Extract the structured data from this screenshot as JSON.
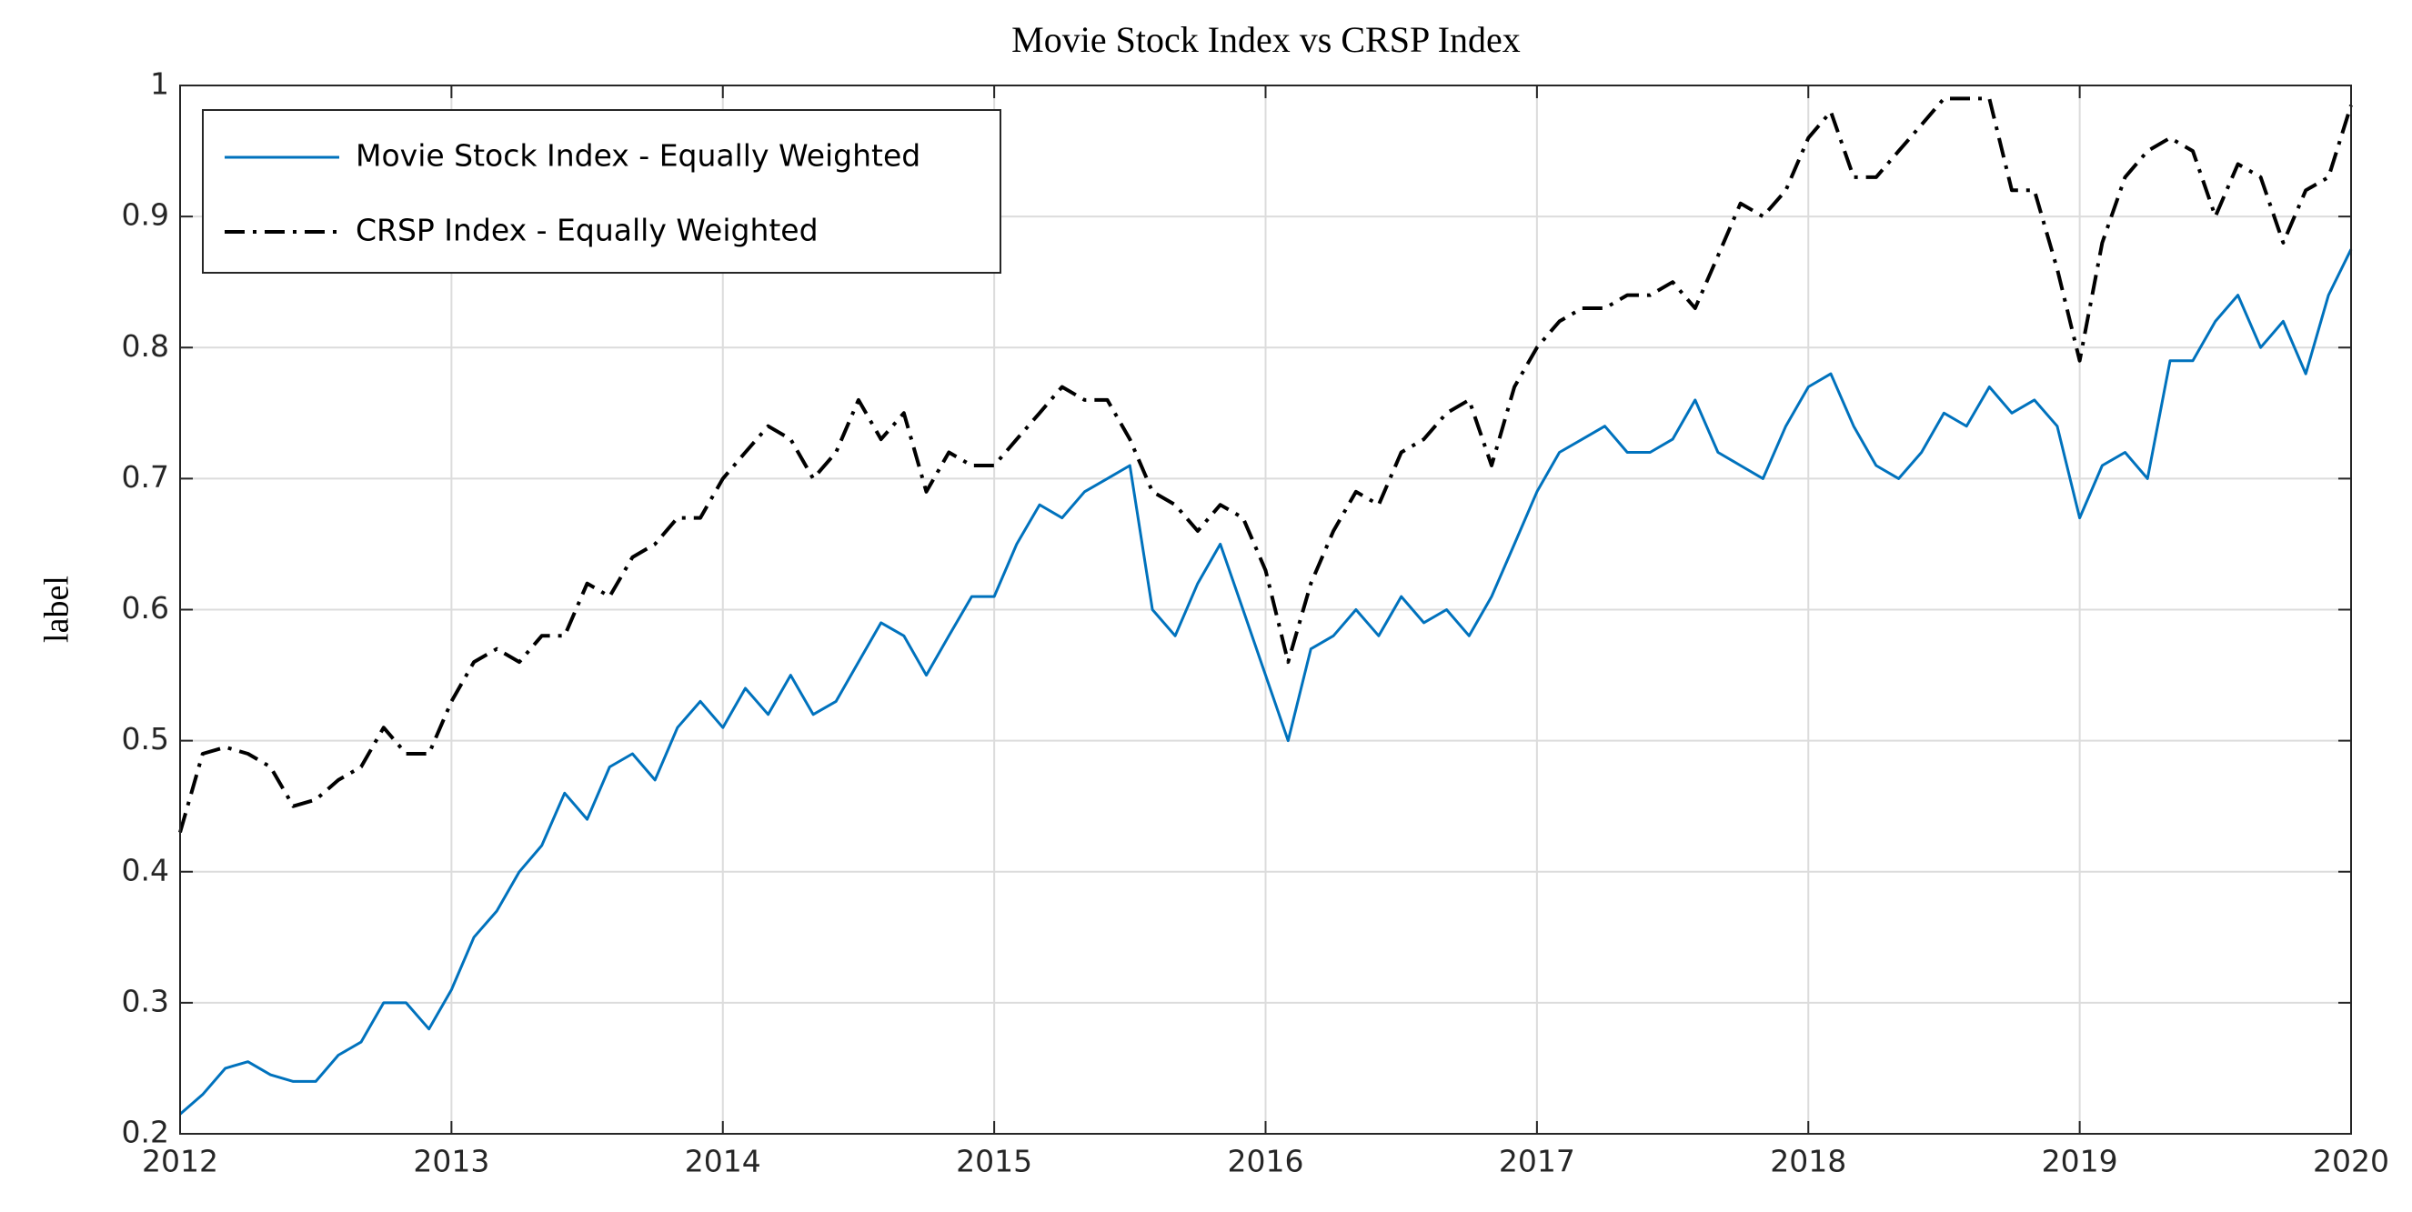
{
  "chart_data": {
    "type": "line",
    "title": "Movie Stock Index vs CRSP Index",
    "ylabel": "label",
    "x": [
      2012,
      2012.083,
      2012.167,
      2012.25,
      2012.333,
      2012.417,
      2012.5,
      2012.583,
      2012.667,
      2012.75,
      2012.833,
      2012.917,
      2013,
      2013.083,
      2013.167,
      2013.25,
      2013.333,
      2013.417,
      2013.5,
      2013.583,
      2013.667,
      2013.75,
      2013.833,
      2013.917,
      2014,
      2014.083,
      2014.167,
      2014.25,
      2014.333,
      2014.417,
      2014.5,
      2014.583,
      2014.667,
      2014.75,
      2014.833,
      2014.917,
      2015,
      2015.083,
      2015.167,
      2015.25,
      2015.333,
      2015.417,
      2015.5,
      2015.583,
      2015.667,
      2015.75,
      2015.833,
      2015.917,
      2016,
      2016.083,
      2016.167,
      2016.25,
      2016.333,
      2016.417,
      2016.5,
      2016.583,
      2016.667,
      2016.75,
      2016.833,
      2016.917,
      2017,
      2017.083,
      2017.167,
      2017.25,
      2017.333,
      2017.417,
      2017.5,
      2017.583,
      2017.667,
      2017.75,
      2017.833,
      2017.917,
      2018,
      2018.083,
      2018.167,
      2018.25,
      2018.333,
      2018.417,
      2018.5,
      2018.583,
      2018.667,
      2018.75,
      2018.833,
      2018.917,
      2019,
      2019.083,
      2019.167,
      2019.25,
      2019.333,
      2019.417,
      2019.5,
      2019.583,
      2019.667,
      2019.75,
      2019.833,
      2019.917,
      2020
    ],
    "series": [
      {
        "name": "Movie Stock Index - Equally Weighted",
        "color": "#0072bd",
        "line_style": "solid",
        "values": [
          0.215,
          0.23,
          0.25,
          0.255,
          0.245,
          0.24,
          0.24,
          0.26,
          0.27,
          0.3,
          0.3,
          0.28,
          0.31,
          0.35,
          0.37,
          0.4,
          0.42,
          0.46,
          0.44,
          0.48,
          0.49,
          0.47,
          0.51,
          0.53,
          0.51,
          0.54,
          0.52,
          0.55,
          0.52,
          0.53,
          0.56,
          0.59,
          0.58,
          0.55,
          0.58,
          0.61,
          0.61,
          0.65,
          0.68,
          0.67,
          0.69,
          0.7,
          0.71,
          0.6,
          0.58,
          0.62,
          0.65,
          0.6,
          0.55,
          0.5,
          0.57,
          0.58,
          0.6,
          0.58,
          0.61,
          0.59,
          0.6,
          0.58,
          0.61,
          0.65,
          0.69,
          0.72,
          0.73,
          0.74,
          0.72,
          0.72,
          0.73,
          0.76,
          0.72,
          0.71,
          0.7,
          0.74,
          0.77,
          0.78,
          0.74,
          0.71,
          0.7,
          0.72,
          0.75,
          0.74,
          0.77,
          0.75,
          0.76,
          0.74,
          0.67,
          0.71,
          0.72,
          0.7,
          0.79,
          0.79,
          0.82,
          0.84,
          0.8,
          0.82,
          0.78,
          0.84,
          0.875
        ]
      },
      {
        "name": "CRSP Index - Equally Weighted",
        "color": "#000000",
        "line_style": "dashdot",
        "values": [
          0.43,
          0.49,
          0.495,
          0.49,
          0.48,
          0.45,
          0.455,
          0.47,
          0.48,
          0.51,
          0.49,
          0.49,
          0.53,
          0.56,
          0.57,
          0.56,
          0.58,
          0.58,
          0.62,
          0.61,
          0.64,
          0.65,
          0.67,
          0.67,
          0.7,
          0.72,
          0.74,
          0.73,
          0.7,
          0.72,
          0.76,
          0.73,
          0.75,
          0.69,
          0.72,
          0.71,
          0.71,
          0.73,
          0.75,
          0.77,
          0.76,
          0.76,
          0.73,
          0.69,
          0.68,
          0.66,
          0.68,
          0.67,
          0.63,
          0.56,
          0.62,
          0.66,
          0.69,
          0.68,
          0.72,
          0.73,
          0.75,
          0.76,
          0.71,
          0.77,
          0.8,
          0.82,
          0.83,
          0.83,
          0.84,
          0.84,
          0.85,
          0.83,
          0.87,
          0.91,
          0.9,
          0.92,
          0.96,
          0.98,
          0.93,
          0.93,
          0.95,
          0.97,
          0.99,
          0.99,
          0.99,
          0.92,
          0.92,
          0.86,
          0.79,
          0.88,
          0.93,
          0.95,
          0.96,
          0.95,
          0.9,
          0.94,
          0.93,
          0.88,
          0.92,
          0.93,
          0.985
        ]
      }
    ],
    "xlim": [
      2012,
      2020
    ],
    "xticks": [
      2012,
      2013,
      2014,
      2015,
      2016,
      2017,
      2018,
      2019,
      2020
    ],
    "ylim": [
      0.2,
      1
    ],
    "yticks": [
      0.2,
      0.3,
      0.4,
      0.5,
      0.6,
      0.7,
      0.8,
      0.9,
      1
    ],
    "grid": true,
    "legend": "upper left"
  }
}
